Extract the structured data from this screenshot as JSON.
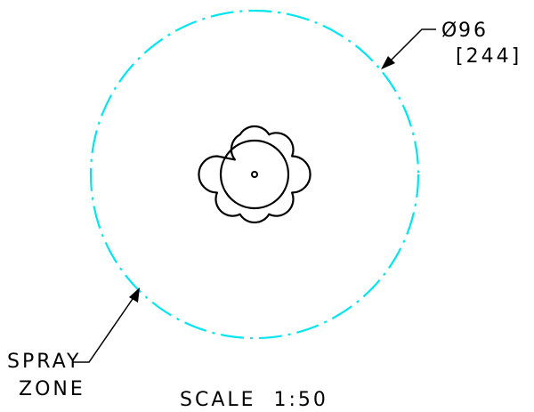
{
  "drawing": {
    "diameter_symbol": "Ø",
    "diameter_value": "96",
    "diameter_alt": "[244]",
    "callout_line1": "SPRAY",
    "callout_line2": "ZONE",
    "scale_label": "SCALE  1:50"
  },
  "style": {
    "spray_zone_color": "#00e5ee",
    "line_color": "#000000",
    "background": "#ffffff"
  }
}
